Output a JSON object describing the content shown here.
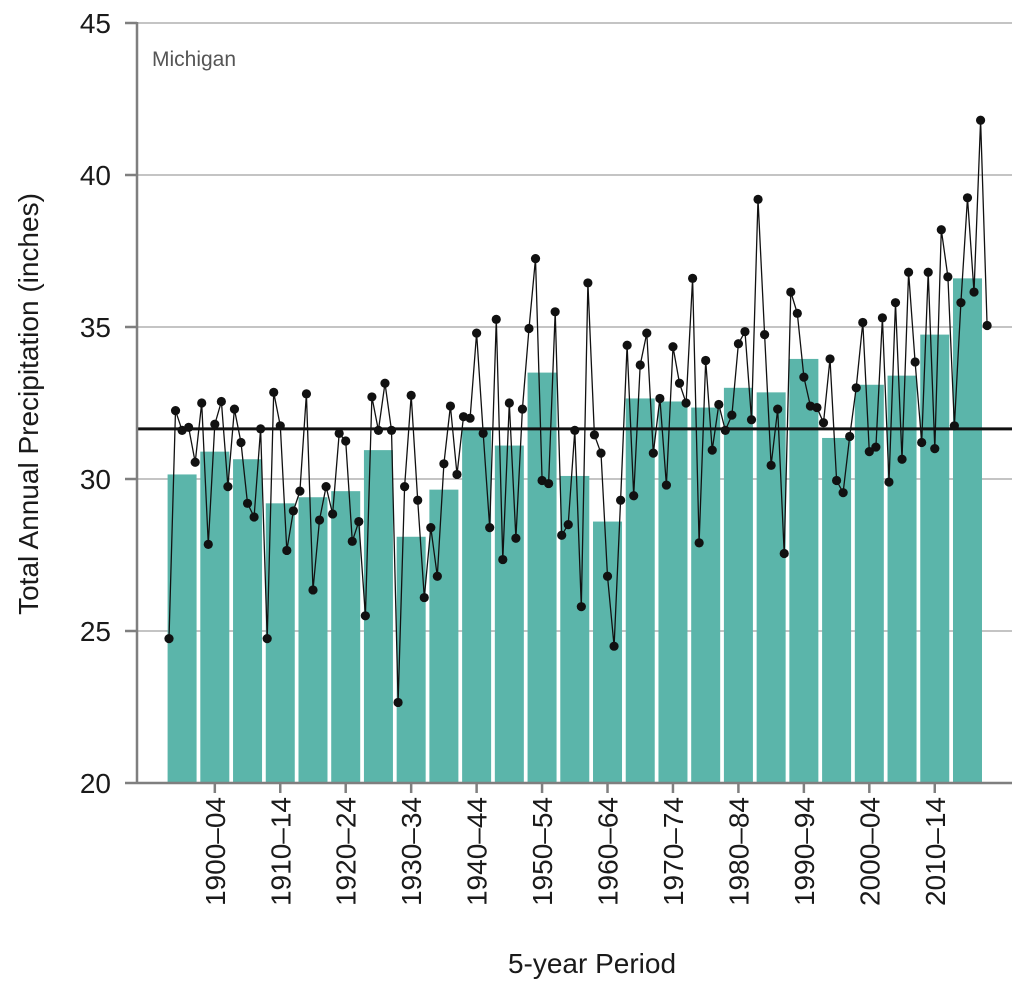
{
  "chart_data": {
    "type": "bar",
    "panel_label": "Michigan",
    "xlabel": "5-year Period",
    "ylabel": "Total Annual Precipitation (inches)",
    "ylim": [
      20,
      45
    ],
    "yticks": [
      20,
      25,
      30,
      35,
      40,
      45
    ],
    "grid": true,
    "x_tick_labels": [
      "1900–04",
      "1910–14",
      "1920–24",
      "1930–34",
      "1940–44",
      "1950–54",
      "1960–64",
      "1970–74",
      "1980–84",
      "1990–94",
      "2000–04",
      "2010–14"
    ],
    "bar_periods": [
      "1895–99",
      "1900–04",
      "1905–09",
      "1910–14",
      "1915–19",
      "1920–24",
      "1925–29",
      "1930–34",
      "1935–39",
      "1940–44",
      "1945–49",
      "1950–54",
      "1955–59",
      "1960–64",
      "1965–69",
      "1970–74",
      "1975–79",
      "1980–84",
      "1985–89",
      "1990–94",
      "1995–99",
      "2000–04",
      "2005–09",
      "2010–14",
      "2015–20"
    ],
    "bar_values": [
      30.15,
      30.9,
      30.65,
      29.2,
      29.4,
      29.6,
      30.95,
      28.1,
      29.65,
      31.7,
      31.1,
      33.5,
      30.1,
      28.6,
      32.65,
      32.55,
      32.35,
      33.0,
      32.85,
      33.95,
      31.35,
      33.1,
      33.4,
      34.75,
      36.6
    ],
    "annual_years": [
      1895,
      1896,
      1897,
      1898,
      1899,
      1900,
      1901,
      1902,
      1903,
      1904,
      1905,
      1906,
      1907,
      1908,
      1909,
      1910,
      1911,
      1912,
      1913,
      1914,
      1915,
      1916,
      1917,
      1918,
      1919,
      1920,
      1921,
      1922,
      1923,
      1924,
      1925,
      1926,
      1927,
      1928,
      1929,
      1930,
      1931,
      1932,
      1933,
      1934,
      1935,
      1936,
      1937,
      1938,
      1939,
      1940,
      1941,
      1942,
      1943,
      1944,
      1945,
      1946,
      1947,
      1948,
      1949,
      1950,
      1951,
      1952,
      1953,
      1954,
      1955,
      1956,
      1957,
      1958,
      1959,
      1960,
      1961,
      1962,
      1963,
      1964,
      1965,
      1966,
      1967,
      1968,
      1969,
      1970,
      1971,
      1972,
      1973,
      1974,
      1975,
      1976,
      1977,
      1978,
      1979,
      1980,
      1981,
      1982,
      1983,
      1984,
      1985,
      1986,
      1987,
      1988,
      1989,
      1990,
      1991,
      1992,
      1993,
      1994,
      1995,
      1996,
      1997,
      1998,
      1999,
      2000,
      2001,
      2002,
      2003,
      2004,
      2005,
      2006,
      2007,
      2008,
      2009,
      2010,
      2011,
      2012,
      2013,
      2014,
      2015,
      2016,
      2017,
      2018,
      2019,
      2020
    ],
    "annual_values": [
      24.75,
      32.25,
      31.6,
      31.7,
      30.55,
      32.5,
      27.85,
      31.8,
      32.55,
      29.75,
      32.3,
      31.2,
      29.2,
      28.75,
      31.65,
      24.75,
      32.85,
      31.75,
      27.65,
      28.95,
      29.6,
      32.8,
      26.35,
      28.65,
      29.75,
      28.85,
      31.5,
      31.25,
      27.95,
      28.6,
      25.5,
      32.7,
      31.6,
      33.15,
      31.6,
      22.65,
      29.75,
      32.75,
      29.3,
      26.1,
      28.4,
      26.8,
      30.5,
      32.4,
      30.15,
      32.05,
      32.0,
      34.8,
      31.5,
      28.4,
      35.25,
      27.35,
      32.5,
      28.05,
      32.3,
      34.95,
      37.25,
      29.95,
      29.85,
      35.5,
      28.15,
      28.5,
      31.6,
      25.8,
      36.45,
      31.45,
      30.85,
      26.8,
      24.5,
      29.3,
      34.4,
      29.45,
      33.75,
      34.8,
      30.85,
      32.65,
      29.8,
      34.35,
      33.15,
      32.5,
      36.6,
      27.9,
      33.9,
      30.95,
      32.45,
      31.6,
      32.1,
      34.45,
      34.85,
      31.95,
      39.2,
      34.75,
      30.45,
      32.3,
      27.55,
      36.15,
      35.45,
      33.35,
      32.4,
      32.35,
      31.85,
      33.95,
      29.95,
      29.55,
      31.4,
      33.0,
      35.15,
      30.9,
      31.05,
      35.3,
      29.9,
      35.8,
      30.65,
      36.8,
      33.85,
      31.2,
      36.8,
      31.0,
      38.2,
      36.65,
      31.75,
      35.8,
      39.25,
      36.15,
      41.8,
      35.05
    ],
    "long_term_average": 31.65,
    "colors": {
      "bars": "#5bb5aa",
      "line": "#111111",
      "average": "#111111",
      "grid": "#c4c4c4",
      "axis": "#7f7f7f"
    }
  }
}
